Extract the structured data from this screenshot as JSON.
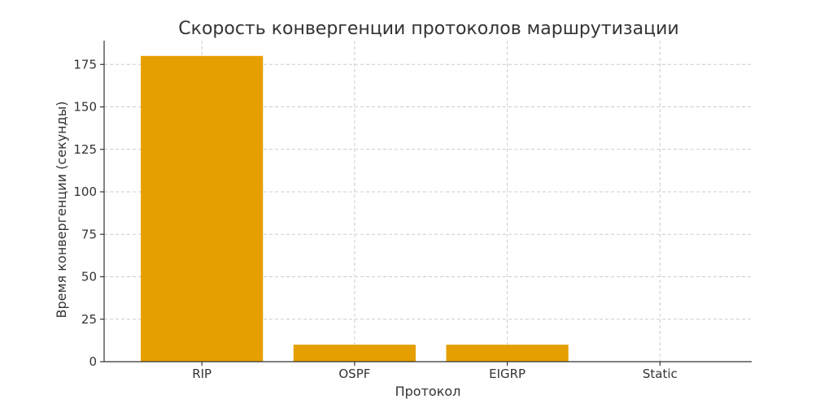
{
  "chart_data": {
    "type": "bar",
    "title": "Скорость конвергенции протоколов маршрутизации",
    "xlabel": "Протокол",
    "ylabel": "Время конвергенции (секунды)",
    "categories": [
      "RIP",
      "OSPF",
      "EIGRP",
      "Static"
    ],
    "values": [
      180,
      10,
      10,
      0
    ],
    "ylim": [
      0,
      189
    ],
    "yticks": [
      0,
      25,
      50,
      75,
      100,
      125,
      150,
      175
    ],
    "grid": true,
    "colors": {
      "bar": "#E69F00",
      "grid": "#cccccc",
      "axis": "#333333"
    }
  }
}
